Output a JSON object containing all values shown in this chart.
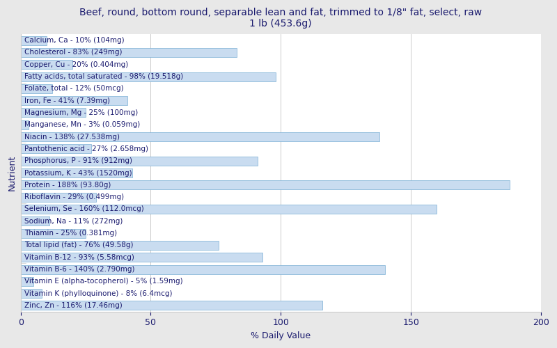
{
  "title": "Beef, round, bottom round, separable lean and fat, trimmed to 1/8\" fat, select, raw\n1 lb (453.6g)",
  "xlabel": "% Daily Value",
  "ylabel": "Nutrient",
  "xlim": [
    0,
    200
  ],
  "xticks": [
    0,
    50,
    100,
    150,
    200
  ],
  "nutrients": [
    {
      "label": "Calcium, Ca - 10% (104mg)",
      "value": 10
    },
    {
      "label": "Cholesterol - 83% (249mg)",
      "value": 83
    },
    {
      "label": "Copper, Cu - 20% (0.404mg)",
      "value": 20
    },
    {
      "label": "Fatty acids, total saturated - 98% (19.518g)",
      "value": 98
    },
    {
      "label": "Folate, total - 12% (50mcg)",
      "value": 12
    },
    {
      "label": "Iron, Fe - 41% (7.39mg)",
      "value": 41
    },
    {
      "label": "Magnesium, Mg - 25% (100mg)",
      "value": 25
    },
    {
      "label": "Manganese, Mn - 3% (0.059mg)",
      "value": 3
    },
    {
      "label": "Niacin - 138% (27.538mg)",
      "value": 138
    },
    {
      "label": "Pantothenic acid - 27% (2.658mg)",
      "value": 27
    },
    {
      "label": "Phosphorus, P - 91% (912mg)",
      "value": 91
    },
    {
      "label": "Potassium, K - 43% (1520mg)",
      "value": 43
    },
    {
      "label": "Protein - 188% (93.80g)",
      "value": 188
    },
    {
      "label": "Riboflavin - 29% (0.499mg)",
      "value": 29
    },
    {
      "label": "Selenium, Se - 160% (112.0mcg)",
      "value": 160
    },
    {
      "label": "Sodium, Na - 11% (272mg)",
      "value": 11
    },
    {
      "label": "Thiamin - 25% (0.381mg)",
      "value": 25
    },
    {
      "label": "Total lipid (fat) - 76% (49.58g)",
      "value": 76
    },
    {
      "label": "Vitamin B-12 - 93% (5.58mcg)",
      "value": 93
    },
    {
      "label": "Vitamin B-6 - 140% (2.790mg)",
      "value": 140
    },
    {
      "label": "Vitamin E (alpha-tocopherol) - 5% (1.59mg)",
      "value": 5
    },
    {
      "label": "Vitamin K (phylloquinone) - 8% (6.4mcg)",
      "value": 8
    },
    {
      "label": "Zinc, Zn - 116% (17.46mg)",
      "value": 116
    }
  ],
  "bar_color": "#c9dcf0",
  "bar_edge_color": "#7aafd4",
  "bar_height": 0.75,
  "bg_color": "#e8e8e8",
  "plot_bg_color": "#ffffff",
  "title_color": "#1a1a6e",
  "label_color": "#1a1a6e",
  "label_fontsize": 7.5,
  "title_fontsize": 10,
  "axis_label_fontsize": 9,
  "grid_color": "#cccccc",
  "tick_label_fontsize": 9
}
